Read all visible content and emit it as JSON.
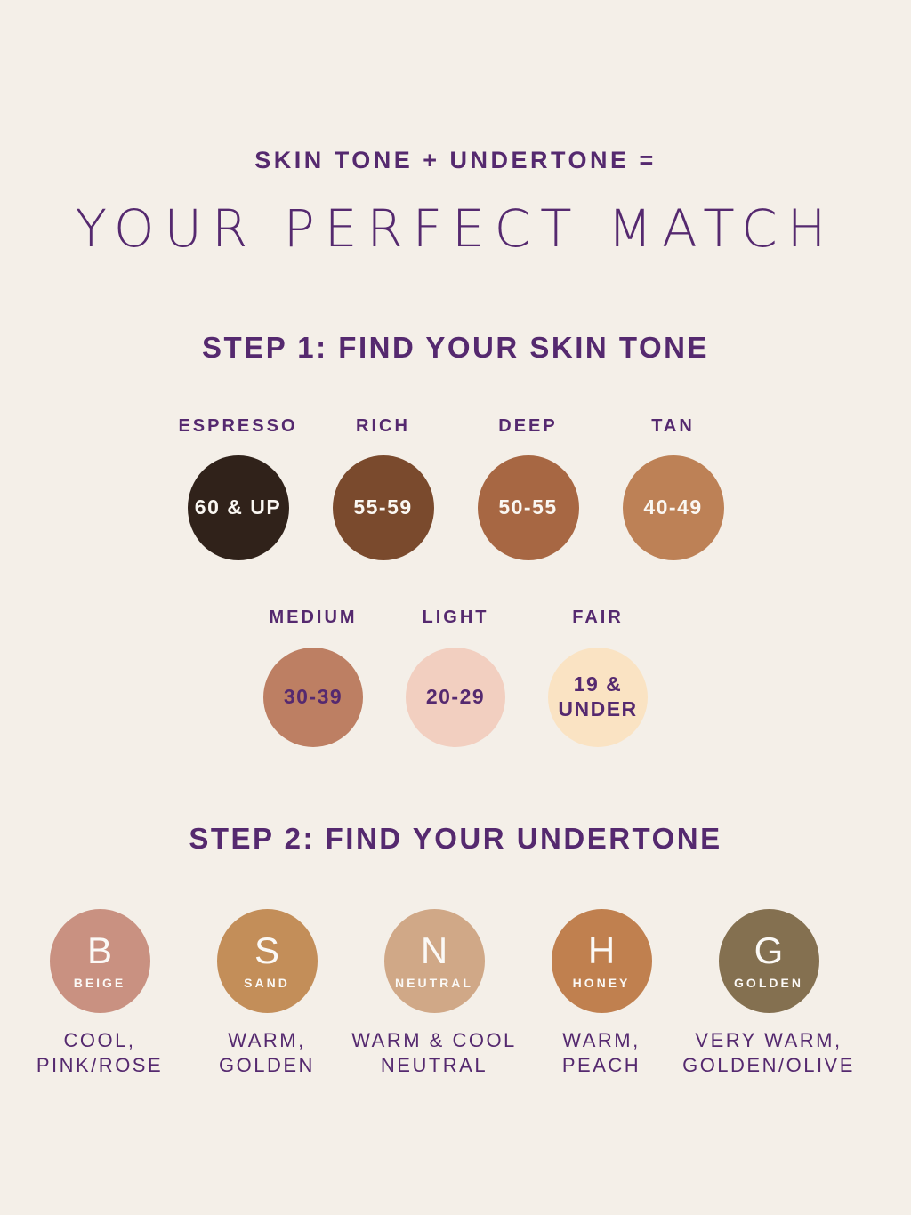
{
  "page": {
    "background": "#f4efe8",
    "accent_purple": "#55296f",
    "light_text": "#faf7f2"
  },
  "header": {
    "subtitle": "SKIN TONE + UNDERTONE =",
    "title": "YOUR PERFECT MATCH"
  },
  "step1": {
    "heading": "STEP 1: FIND YOUR SKIN TONE",
    "row1": [
      {
        "label": "ESPRESSO",
        "range": "60 & UP",
        "color": "#30221a"
      },
      {
        "label": "RICH",
        "range": "55-59",
        "color": "#7a4a2d"
      },
      {
        "label": "DEEP",
        "range": "50-55",
        "color": "#a76743"
      },
      {
        "label": "TAN",
        "range": "40-49",
        "color": "#bd8156"
      }
    ],
    "row2": [
      {
        "label": "MEDIUM",
        "range": "30-39",
        "color": "#bd7f63"
      },
      {
        "label": "LIGHT",
        "range": "20-29",
        "color": "#f2cfc0"
      },
      {
        "label": "FAIR",
        "range": "19 &\nUNDER",
        "color": "#fae3c3"
      }
    ]
  },
  "step2": {
    "heading": "STEP 2: FIND YOUR UNDERTONE",
    "undertones": [
      {
        "letter": "B",
        "name": "BEIGE",
        "color": "#c99181",
        "description": "COOL,\nPINK/ROSE"
      },
      {
        "letter": "S",
        "name": "SAND",
        "color": "#c38e59",
        "description": "WARM,\nGOLDEN"
      },
      {
        "letter": "N",
        "name": "NEUTRAL",
        "color": "#d0a887",
        "description": "WARM & COOL\nNEUTRAL"
      },
      {
        "letter": "H",
        "name": "HONEY",
        "color": "#c0804f",
        "description": "WARM,\nPEACH"
      },
      {
        "letter": "G",
        "name": "GOLDEN",
        "color": "#847050",
        "description": "VERY WARM,\nGOLDEN/OLIVE"
      }
    ]
  }
}
